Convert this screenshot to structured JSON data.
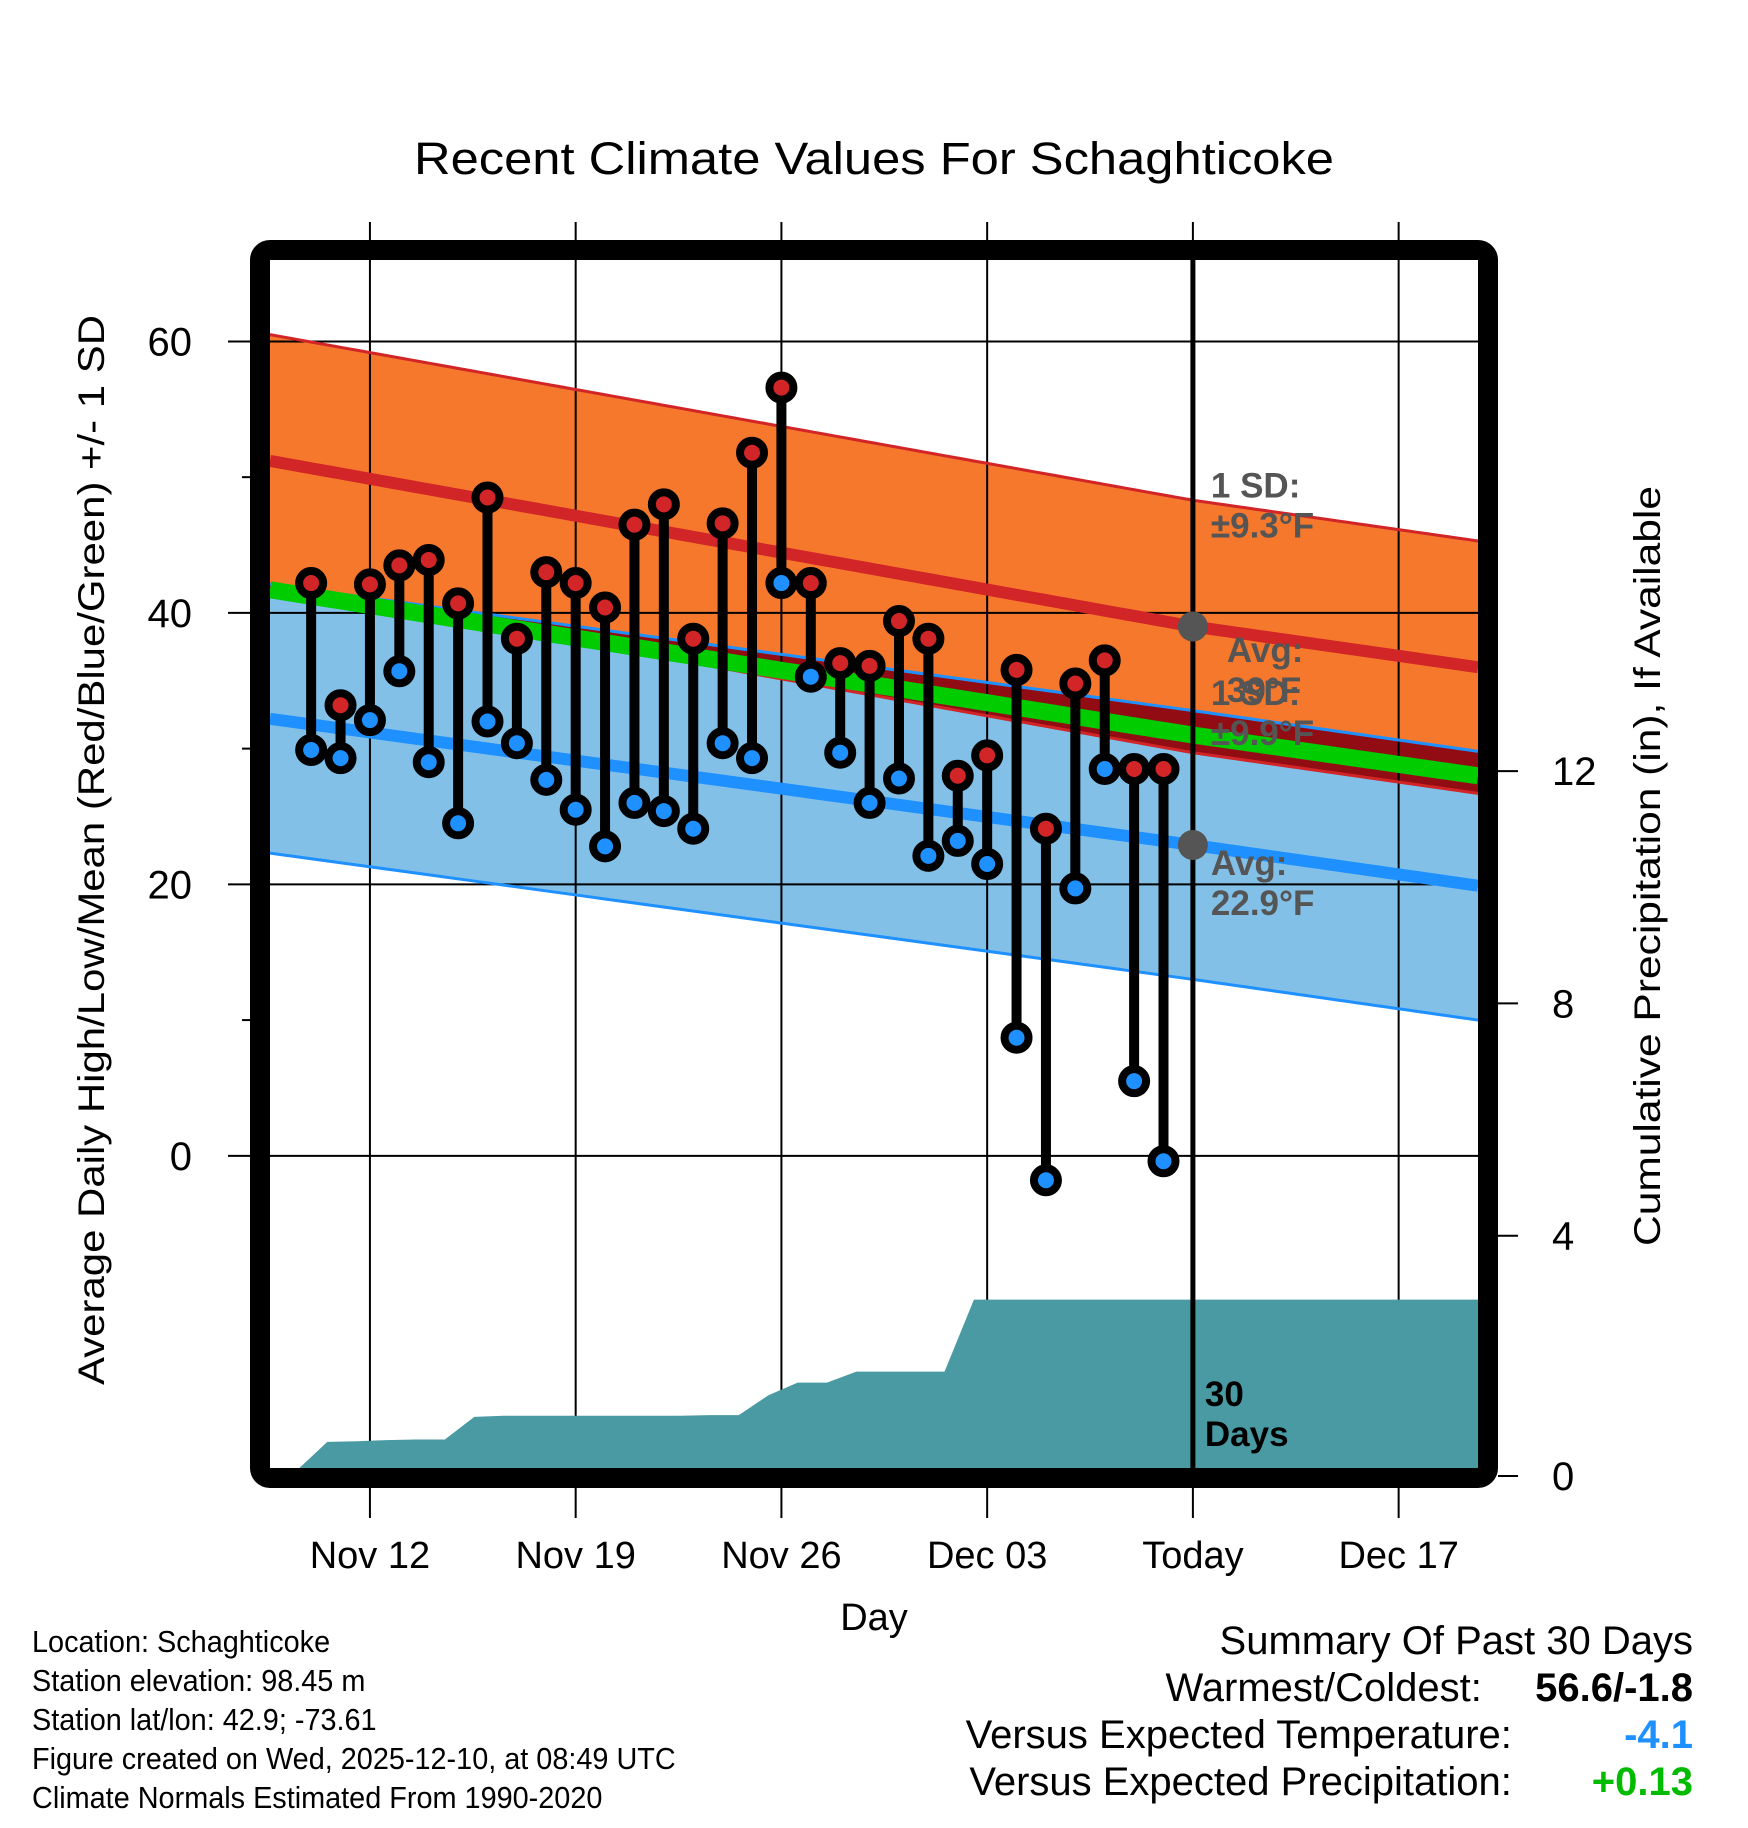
{
  "chart_data": {
    "type": "line",
    "title": "Recent Climate Values For Schaghticoke",
    "xlabel": "Day",
    "ylabel": "Average Daily High/Low/Mean (Red/Blue/Green) +/- 1 SD",
    "y2label": "Cumulative Precipitation (in), If Available",
    "ylim": [
      -23,
      66
    ],
    "y2lim": [
      0,
      20.8
    ],
    "xlim_days_from_nov12": [
      -3.4,
      37.7
    ],
    "grid": true,
    "x_ticks": [
      {
        "label": "Nov 12",
        "day": 0
      },
      {
        "label": "Nov 19",
        "day": 7
      },
      {
        "label": "Nov 26",
        "day": 14
      },
      {
        "label": "Dec 03",
        "day": 21
      },
      {
        "label": "Today",
        "day": 28
      },
      {
        "label": "Dec 17",
        "day": 35
      }
    ],
    "y_ticks": [
      0,
      20,
      40,
      60
    ],
    "y_minor_ticks": [
      10,
      30,
      50
    ],
    "y2_ticks": [
      0,
      4,
      8,
      12
    ],
    "today_day": 28,
    "dates": [
      "Nov 10",
      "Nov 11",
      "Nov 12",
      "Nov 13",
      "Nov 14",
      "Nov 15",
      "Nov 16",
      "Nov 17",
      "Nov 18",
      "Nov 19",
      "Nov 20",
      "Nov 21",
      "Nov 22",
      "Nov 23",
      "Nov 24",
      "Nov 25",
      "Nov 26",
      "Nov 27",
      "Nov 28",
      "Nov 29",
      "Nov 30",
      "Dec 01",
      "Dec 02",
      "Dec 03",
      "Dec 04",
      "Dec 05",
      "Dec 06",
      "Dec 07",
      "Dec 08",
      "Dec 09"
    ],
    "series": [
      {
        "name": "Daily High",
        "color": "#d12527",
        "values": [
          42.2,
          33.2,
          42.1,
          43.5,
          43.9,
          40.7,
          48.5,
          38.1,
          43.0,
          42.2,
          40.4,
          46.5,
          48.0,
          38.1,
          46.6,
          51.8,
          56.6,
          42.2,
          36.3,
          36.1,
          39.4,
          38.1,
          28.0,
          29.5,
          35.8,
          24.1,
          34.8,
          36.5,
          28.5,
          28.5
        ]
      },
      {
        "name": "Daily Low",
        "color": "#1e90ff",
        "values": [
          29.9,
          29.3,
          32.1,
          35.7,
          29.0,
          24.5,
          32.0,
          30.4,
          27.7,
          25.5,
          22.8,
          26.0,
          25.4,
          24.1,
          30.4,
          29.3,
          42.2,
          35.3,
          29.7,
          26.0,
          27.8,
          22.1,
          23.2,
          21.5,
          8.7,
          -1.8,
          19.7,
          28.5,
          5.5,
          -0.4
        ]
      },
      {
        "name": "Cumulative Precipitation (in)",
        "color": "#4a9aa3",
        "axis": "right",
        "values": [
          0.45,
          0.46,
          0.48,
          0.49,
          0.49,
          0.88,
          0.9,
          0.9,
          0.9,
          0.9,
          0.9,
          0.9,
          0.9,
          0.91,
          0.91,
          1.25,
          1.47,
          1.47,
          1.66,
          1.66,
          1.66,
          1.66,
          2.9,
          2.9,
          2.9,
          2.9,
          2.9,
          2.9,
          2.9,
          2.9
        ],
        "extends_to_day": 37.7
      }
    ],
    "normals": {
      "x_days": [
        -3.4,
        28,
        37.7
      ],
      "high_avg": [
        51.2,
        39.0,
        36.0
      ],
      "high_sd": 9.3,
      "low_avg": [
        32.2,
        22.9,
        19.9
      ],
      "low_sd": 9.9,
      "mean_avg": [
        41.7,
        31.0,
        28.0
      ]
    },
    "annotations": [
      {
        "text_line1": "1 SD:",
        "text_line2": "±9.3°F",
        "target": "high"
      },
      {
        "text_line1": "Avg:",
        "text_line2": "39°F",
        "target": "high"
      },
      {
        "text_line1": "1 SD:",
        "text_line2": "±9.9°F",
        "target": "low"
      },
      {
        "text_line1": "Avg:",
        "text_line2": "22.9°F",
        "target": "low"
      },
      {
        "text_line1": "30",
        "text_line2": "Days",
        "target": "precip"
      }
    ],
    "colors": {
      "high_band": "#f5782c",
      "high_line": "#d12527",
      "low_band": "#82c0e8",
      "low_line": "#1e90ff",
      "mean_line": "#00cc00",
      "overlap_band": "#920d13",
      "precip_fill": "#4a9aa3",
      "annotation_text": "#555555"
    }
  },
  "footer_left": {
    "location": "Location: Schaghticoke",
    "elevation": "Station elevation: 98.45 m",
    "latlon": "Station lat/lon: 42.9; -73.61",
    "created": "Figure created on Wed, 2025-12-10, at 08:49 UTC",
    "normals": "Climate Normals Estimated From 1990-2020"
  },
  "summary": {
    "heading": "Summary Of Past 30 Days",
    "warmest_coldest_label": "Warmest/Coldest:",
    "warmest_coldest_value": "56.6/-1.8",
    "temp_label": "Versus Expected Temperature:",
    "temp_value": "-4.1",
    "temp_color": "#1e90ff",
    "precip_label": "Versus Expected Precipitation:",
    "precip_value": "+0.13",
    "precip_color": "#00bb00"
  }
}
